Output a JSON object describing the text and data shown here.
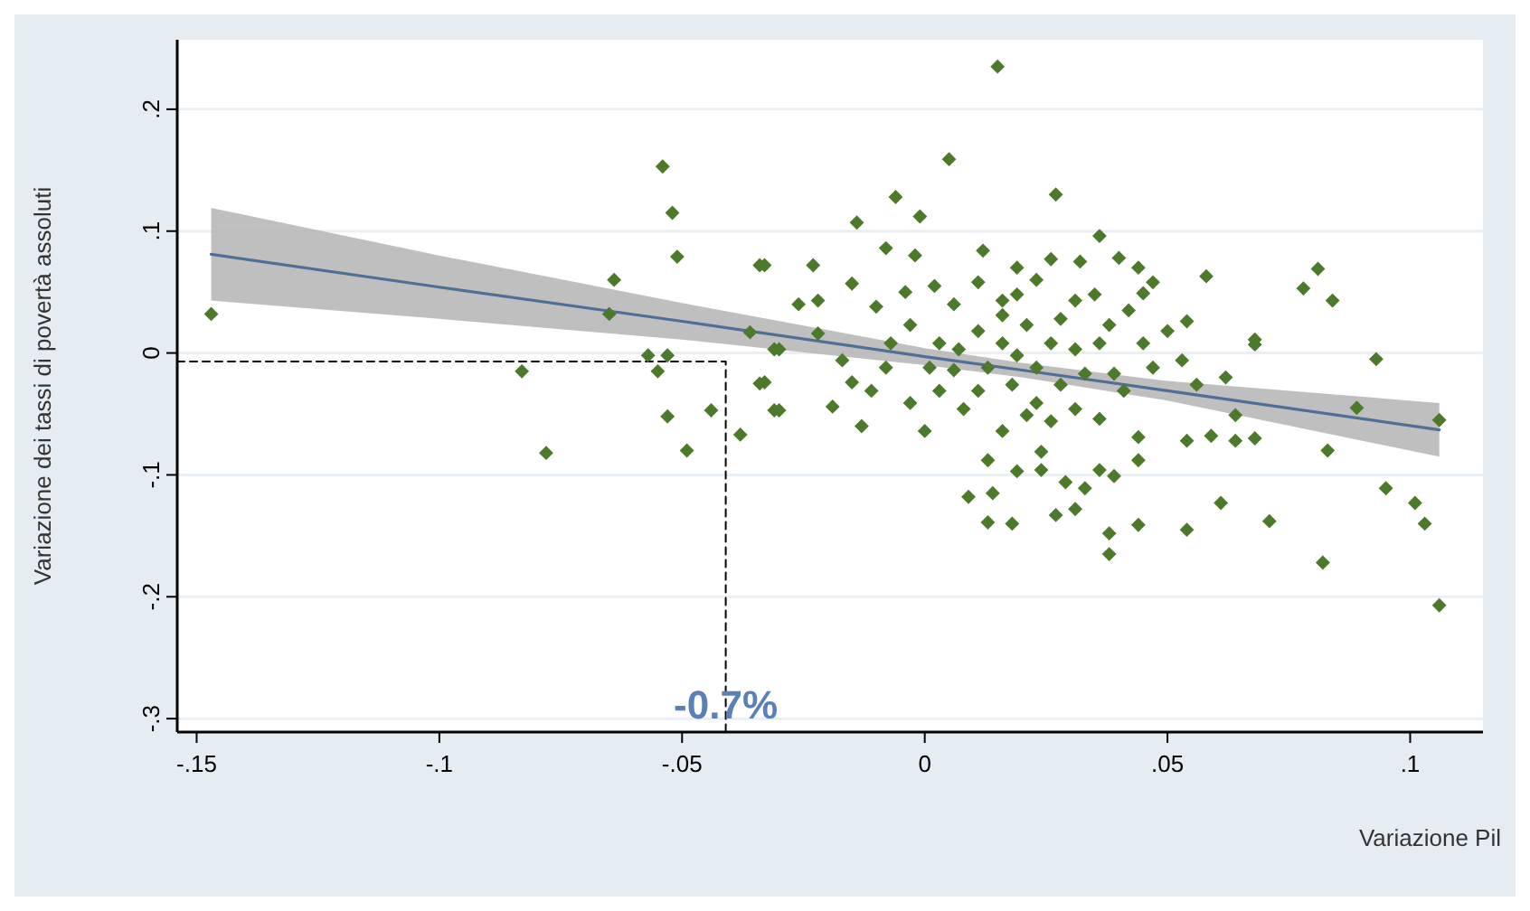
{
  "chart_data": {
    "type": "scatter",
    "xlabel": "Variazione Pil",
    "ylabel": "Variazione  dei tassi di povertà assoluti",
    "xlim": [
      -0.154,
      0.115
    ],
    "ylim": [
      -0.311,
      0.257
    ],
    "xticks": [
      {
        "value": -0.15,
        "label": "-.15"
      },
      {
        "value": -0.1,
        "label": "-.1"
      },
      {
        "value": -0.05,
        "label": "-.05"
      },
      0,
      {
        "value": 0.05,
        "label": ".05"
      },
      {
        "value": 0.1,
        "label": ".1"
      }
    ],
    "yticks": [
      {
        "value": -0.3,
        "label": "-.3"
      },
      {
        "value": -0.2,
        "label": "-.2"
      },
      {
        "value": -0.1,
        "label": "-.1"
      },
      0,
      {
        "value": 0.1,
        "label": ".1"
      },
      {
        "value": 0.2,
        "label": ".2"
      }
    ],
    "grid": "y",
    "annotations": [
      {
        "text": "-0.7%",
        "x": -0.041,
        "y": -0.3
      }
    ],
    "series": [
      {
        "color": "#4d7a2a",
        "marker": "diamond",
        "x": [
          -0.147,
          -0.064,
          -0.065,
          -0.054,
          -0.052,
          -0.051,
          -0.034,
          -0.036,
          -0.083,
          -0.078,
          -0.057,
          -0.053,
          -0.055,
          -0.053,
          -0.044,
          -0.049,
          -0.038,
          -0.034,
          -0.031,
          -0.031,
          0.015,
          0.005,
          -0.006,
          -0.001,
          -0.014,
          0.027,
          0.036,
          -0.008,
          -0.002,
          0.012,
          -0.023,
          -0.033,
          0.026,
          0.032,
          0.04,
          0.044,
          0.019,
          0.058,
          0.081,
          0.078,
          0.084,
          -0.015,
          -0.022,
          -0.026,
          -0.01,
          -0.004,
          0.002,
          0.006,
          0.011,
          0.023,
          0.035,
          0.047,
          0.045,
          0.042,
          0.054,
          0.05,
          0.068,
          0.031,
          0.016,
          0.019,
          -0.03,
          -0.033,
          -0.03,
          -0.022,
          -0.017,
          -0.019,
          -0.013,
          -0.015,
          -0.011,
          -0.008,
          -0.003,
          0.0,
          0.003,
          0.006,
          0.008,
          0.013,
          0.009,
          0.014,
          0.013,
          0.018,
          0.019,
          0.024,
          0.024,
          0.029,
          0.033,
          0.027,
          0.031,
          0.036,
          0.039,
          0.038,
          0.038,
          0.044,
          0.044,
          0.044,
          0.054,
          0.061,
          0.071,
          0.082,
          0.095,
          0.101,
          0.103,
          0.106,
          0.106,
          0.089,
          0.083,
          0.093,
          0.068,
          0.062,
          0.064,
          0.054,
          0.059,
          0.068,
          0.064,
          0.056,
          0.053,
          0.047,
          0.041,
          0.036,
          0.031,
          0.026,
          0.021,
          0.016,
          0.016,
          0.019,
          0.023,
          0.026,
          0.018,
          0.013,
          0.028,
          0.033,
          0.031,
          0.036,
          0.039,
          0.021,
          0.016,
          0.011,
          0.007,
          0.003,
          0.001,
          -0.003,
          -0.007,
          0.028,
          0.038,
          0.045,
          0.023,
          0.011
        ],
        "values": [
          0.032,
          0.06,
          0.032,
          0.153,
          0.115,
          0.079,
          0.072,
          0.017,
          -0.015,
          -0.082,
          -0.002,
          -0.002,
          -0.015,
          -0.052,
          -0.047,
          -0.08,
          -0.067,
          -0.025,
          -0.047,
          0.003,
          0.235,
          0.159,
          0.128,
          0.112,
          0.107,
          0.13,
          0.096,
          0.086,
          0.08,
          0.084,
          0.072,
          0.072,
          0.077,
          0.075,
          0.078,
          0.07,
          0.07,
          0.063,
          0.069,
          0.053,
          0.043,
          0.057,
          0.043,
          0.04,
          0.038,
          0.05,
          0.055,
          0.04,
          0.058,
          0.06,
          0.048,
          0.058,
          0.049,
          0.035,
          0.026,
          0.018,
          0.011,
          0.043,
          0.043,
          0.048,
          -0.047,
          -0.024,
          0.003,
          0.016,
          -0.006,
          -0.044,
          -0.06,
          -0.024,
          -0.031,
          -0.012,
          -0.041,
          -0.064,
          -0.031,
          -0.014,
          -0.046,
          -0.088,
          -0.118,
          -0.115,
          -0.139,
          -0.14,
          -0.097,
          -0.081,
          -0.096,
          -0.106,
          -0.111,
          -0.133,
          -0.128,
          -0.096,
          -0.101,
          -0.148,
          -0.165,
          -0.141,
          -0.088,
          -0.069,
          -0.145,
          -0.123,
          -0.138,
          -0.172,
          -0.111,
          -0.123,
          -0.14,
          -0.207,
          -0.055,
          -0.045,
          -0.08,
          -0.005,
          0.007,
          -0.02,
          -0.051,
          -0.072,
          -0.068,
          -0.07,
          -0.072,
          -0.026,
          -0.006,
          -0.012,
          -0.031,
          -0.054,
          -0.046,
          -0.056,
          -0.051,
          -0.064,
          0.008,
          -0.002,
          -0.012,
          0.008,
          -0.026,
          -0.012,
          -0.026,
          -0.017,
          0.003,
          0.008,
          -0.017,
          0.023,
          0.031,
          0.018,
          0.003,
          0.008,
          -0.012,
          0.023,
          0.008,
          0.028,
          0.023,
          0.008,
          -0.041,
          -0.031
        ]
      },
      {
        "type": "line",
        "color": "#4f6f96",
        "x": [
          -0.147,
          -0.1,
          -0.05,
          0,
          0.02,
          0.05,
          0.106
        ],
        "values": [
          0.081,
          0.054,
          0.026,
          -0.003,
          -0.014,
          -0.031,
          -0.063
        ],
        "lower": [
          0.043,
          0.028,
          0.011,
          -0.01,
          -0.02,
          -0.039,
          -0.085
        ],
        "upper": [
          0.119,
          0.08,
          0.041,
          0.004,
          -0.008,
          -0.023,
          -0.041
        ]
      },
      {
        "type": "line",
        "color": "#000000",
        "line_style": "dashed",
        "x": [
          -0.154,
          -0.041,
          -0.041
        ],
        "values": [
          -0.007,
          -0.007,
          -0.311
        ]
      }
    ]
  }
}
